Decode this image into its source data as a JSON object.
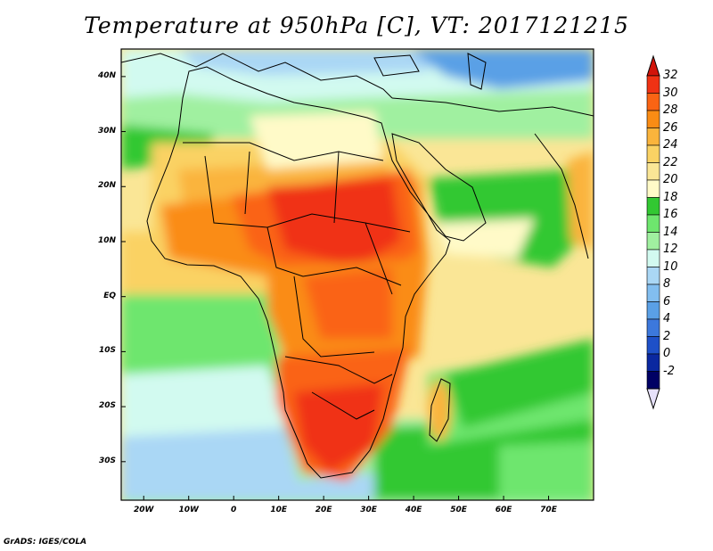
{
  "title": "Temperature at 950hPa [C], VT: 2017121215",
  "footer": "GrADS: IGES/COLA",
  "map": {
    "lon_range": [
      -25,
      80
    ],
    "lat_range": [
      -37,
      45
    ],
    "lon_ticks": [
      "20W",
      "10W",
      "0",
      "10E",
      "20E",
      "30E",
      "40E",
      "50E",
      "60E",
      "70E"
    ],
    "lat_ticks": [
      "40N",
      "30N",
      "20N",
      "10N",
      "EQ",
      "10S",
      "20S",
      "30S"
    ]
  },
  "colorbar": {
    "labels": [
      "32",
      "30",
      "28",
      "26",
      "24",
      "22",
      "20",
      "18",
      "16",
      "14",
      "12",
      "10",
      "8",
      "6",
      "4",
      "2",
      "0",
      "-2"
    ],
    "colors": [
      "#f03214",
      "#fa6414",
      "#fa8c14",
      "#fab43c",
      "#fad264",
      "#fae696",
      "#fffac8",
      "#32c832",
      "#6ee66e",
      "#a0f0a0",
      "#d2faf0",
      "#aad7f5",
      "#82bef0",
      "#5aa0e6",
      "#3c78dc",
      "#1e50c8",
      "#0a28a0",
      "#000064"
    ],
    "top_color": "#d2140a",
    "bottom_color": "#e6e1fa"
  }
}
